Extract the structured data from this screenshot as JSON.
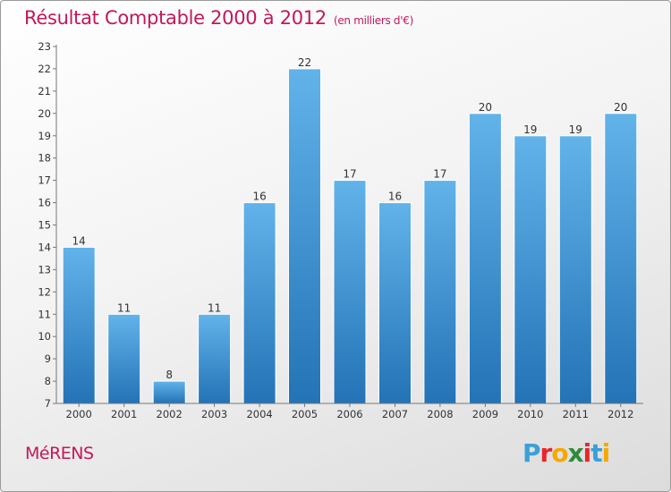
{
  "header": {
    "title": "Résultat Comptable 2000 à 2012",
    "subtitle": "(en milliers d'€)"
  },
  "footer": {
    "city": "MéRENS",
    "brand_letters": [
      "P",
      "r",
      "o",
      "x",
      "i",
      "t",
      "i"
    ],
    "brand_colors": [
      "#3aa0d8",
      "#e8262d",
      "#f5a800",
      "#2e8b3c",
      "#e8262d",
      "#3aa0d8",
      "#f5a800"
    ]
  },
  "colors": {
    "title": "#c2185b",
    "bar_top": "#62b3ea",
    "bar_bottom": "#2373b6"
  },
  "chart_data": {
    "type": "bar",
    "title": "Résultat Comptable 2000 à 2012",
    "subtitle": "(en milliers d'€)",
    "categories": [
      "2000",
      "2001",
      "2002",
      "2003",
      "2004",
      "2005",
      "2006",
      "2007",
      "2008",
      "2009",
      "2010",
      "2011",
      "2012"
    ],
    "values": [
      14,
      11,
      8,
      11,
      16,
      22,
      17,
      16,
      17,
      20,
      19,
      19,
      20
    ],
    "ylim": [
      7,
      23
    ],
    "yticks": [
      "7",
      "8",
      "9",
      "10",
      "11",
      "12",
      "13",
      "14",
      "15",
      "16",
      "17",
      "18",
      "19",
      "20",
      "21",
      "22",
      "23"
    ],
    "grid": false,
    "xlabel": "",
    "ylabel": ""
  }
}
